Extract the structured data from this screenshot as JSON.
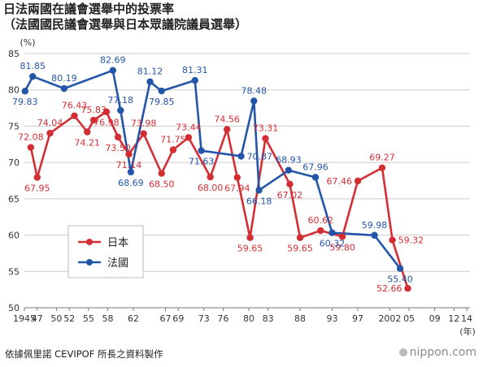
{
  "title": "日法兩國在議會選舉中的投票率",
  "subtitle": "（法國國民議會選舉與日本眾議院議員選舉）",
  "source": "依據佩里諾 CEVIPOF 所長之資料製作",
  "brand": "nippon.com",
  "colors": {
    "japan": "#d42e35",
    "france": "#2355a8",
    "grid": "#cccccc",
    "axis": "#777777"
  },
  "chart_data": {
    "type": "line",
    "ylabel": "(%)",
    "xlabel": "(年)",
    "ylim": [
      50,
      85
    ],
    "yticks": [
      50,
      55,
      60,
      65,
      70,
      75,
      80,
      85
    ],
    "xlim": [
      1945,
      2014.5
    ],
    "xticks": [
      {
        "x": 1945,
        "label": "1945"
      },
      {
        "x": 1947,
        "label": "47"
      },
      {
        "x": 1950,
        "label": "50"
      },
      {
        "x": 1952,
        "label": "52"
      },
      {
        "x": 1955,
        "label": "55"
      },
      {
        "x": 1958,
        "label": "58"
      },
      {
        "x": 1962,
        "label": "62"
      },
      {
        "x": 1967,
        "label": "67"
      },
      {
        "x": 1969,
        "label": "69"
      },
      {
        "x": 1973,
        "label": "73"
      },
      {
        "x": 1976,
        "label": "76"
      },
      {
        "x": 1980,
        "label": "80"
      },
      {
        "x": 1983,
        "label": "83"
      },
      {
        "x": 1988,
        "label": "88"
      },
      {
        "x": 1993,
        "label": "93"
      },
      {
        "x": 1997,
        "label": "97"
      },
      {
        "x": 2002,
        "label": "2002"
      },
      {
        "x": 2005,
        "label": "05"
      },
      {
        "x": 2009,
        "label": "09"
      },
      {
        "x": 2012,
        "label": "12"
      },
      {
        "x": 2014,
        "label": "14"
      }
    ],
    "grid": true,
    "legend_position": "lower-left",
    "series": [
      {
        "name": "日本",
        "color_key": "japan",
        "points": [
          {
            "x": 1946,
            "y": 72.08,
            "label": "72.08",
            "pos": "above"
          },
          {
            "x": 1947,
            "y": 67.95,
            "label": "67.95",
            "pos": "below"
          },
          {
            "x": 1949,
            "y": 74.04,
            "label": "74.04",
            "pos": "above"
          },
          {
            "x": 1952.8,
            "y": 76.43,
            "label": "76.43",
            "pos": "above"
          },
          {
            "x": 1954.8,
            "y": 74.21,
            "label": "74.21",
            "pos": "below"
          },
          {
            "x": 1955.8,
            "y": 75.83,
            "label": "75.83",
            "pos": "above"
          },
          {
            "x": 1957.8,
            "y": 76.98,
            "label": "76.98",
            "pos": "below"
          },
          {
            "x": 1959.6,
            "y": 73.5,
            "label": "73.50",
            "pos": "below"
          },
          {
            "x": 1961.3,
            "y": 71.14,
            "label": "71.14",
            "pos": "below"
          },
          {
            "x": 1963.6,
            "y": 73.98,
            "label": "73.98",
            "pos": "above"
          },
          {
            "x": 1966.4,
            "y": 68.5,
            "label": "68.50",
            "pos": "below"
          },
          {
            "x": 1968.2,
            "y": 71.75,
            "label": "71.75",
            "pos": "above"
          },
          {
            "x": 1970.6,
            "y": 73.44,
            "label": "73.44",
            "pos": "above"
          },
          {
            "x": 1974,
            "y": 68.0,
            "label": "68.00",
            "pos": "below"
          },
          {
            "x": 1976.6,
            "y": 74.56,
            "label": "74.56",
            "pos": "above"
          },
          {
            "x": 1978.2,
            "y": 67.94,
            "label": "67.94",
            "pos": "below"
          },
          {
            "x": 1980.2,
            "y": 59.65,
            "label": "59.65",
            "pos": "below"
          },
          {
            "x": 1982.6,
            "y": 73.31,
            "label": "73.31",
            "pos": "above"
          },
          {
            "x": 1986.4,
            "y": 67.02,
            "label": "67.02",
            "pos": "below"
          },
          {
            "x": 1988,
            "y": 59.65,
            "label": "59.65",
            "pos": "below"
          },
          {
            "x": 1991.2,
            "y": 60.62,
            "label": "60.62",
            "pos": "above"
          },
          {
            "x": 1994.6,
            "y": 59.8,
            "label": "59.80",
            "pos": "below"
          },
          {
            "x": 1997,
            "y": 67.46,
            "label": "67.46",
            "pos": "left"
          },
          {
            "x": 2000.8,
            "y": 69.27,
            "label": "69.27",
            "pos": "above"
          },
          {
            "x": 2002.4,
            "y": 59.32,
            "label": "59.32",
            "pos": "right"
          },
          {
            "x": 2004.8,
            "y": 52.66,
            "label": "52.66",
            "pos": "left"
          }
        ]
      },
      {
        "name": "法國",
        "color_key": "france",
        "points": [
          {
            "x": 1945.1,
            "y": 79.83,
            "label": "79.83",
            "pos": "below"
          },
          {
            "x": 1946.3,
            "y": 81.85,
            "label": "81.85",
            "pos": "above"
          },
          {
            "x": 1951.2,
            "y": 80.19,
            "label": "80.19",
            "pos": "above"
          },
          {
            "x": 1958.8,
            "y": 82.69,
            "label": "82.69",
            "pos": "above"
          },
          {
            "x": 1960,
            "y": 77.18,
            "label": "77.18",
            "pos": "above"
          },
          {
            "x": 1961.6,
            "y": 68.69,
            "label": "68.69",
            "pos": "below"
          },
          {
            "x": 1964.6,
            "y": 81.12,
            "label": "81.12",
            "pos": "above"
          },
          {
            "x": 1966.4,
            "y": 79.85,
            "label": "79.85",
            "pos": "below"
          },
          {
            "x": 1971.6,
            "y": 81.31,
            "label": "81.31",
            "pos": "above"
          },
          {
            "x": 1972.6,
            "y": 71.63,
            "label": "71.63",
            "pos": "below"
          },
          {
            "x": 1978.8,
            "y": 70.87,
            "label": "70.87",
            "pos": "right"
          },
          {
            "x": 1980.8,
            "y": 78.48,
            "label": "78.48",
            "pos": "above"
          },
          {
            "x": 1981.6,
            "y": 66.18,
            "label": "66.18",
            "pos": "below"
          },
          {
            "x": 1986.2,
            "y": 68.93,
            "label": "68.93",
            "pos": "above"
          },
          {
            "x": 1990.4,
            "y": 67.96,
            "label": "67.96",
            "pos": "above"
          },
          {
            "x": 1993,
            "y": 60.32,
            "label": "60.32",
            "pos": "below"
          },
          {
            "x": 1999.6,
            "y": 59.98,
            "label": "59.98",
            "pos": "above"
          },
          {
            "x": 2003.6,
            "y": 55.4,
            "label": "55.40",
            "pos": "below"
          }
        ]
      }
    ]
  }
}
